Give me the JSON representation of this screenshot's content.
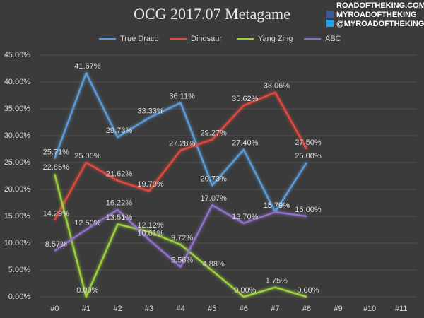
{
  "chart_data": {
    "type": "line",
    "title": "OCG 2017.07 Metagame",
    "annotations": [
      "ROADOFTHEKING.COM",
      "MYROADOFTHEKING",
      "@MYROADOFTHEKING"
    ],
    "categories": [
      "#0",
      "#1",
      "#2",
      "#3",
      "#4",
      "#5",
      "#6",
      "#7",
      "#8",
      "#9",
      "#10",
      "#11"
    ],
    "series": [
      {
        "name": "True Draco",
        "color": "#5b9bd5",
        "values": [
          25.71,
          41.67,
          29.73,
          33.33,
          36.11,
          20.73,
          27.4,
          15.79,
          25.0,
          null,
          null,
          null
        ],
        "value_labels": [
          "25.71%",
          "41.67%",
          "29.73%",
          "33.33%",
          "36.11%",
          "20.73%",
          "27.40%",
          "15.79%",
          "25.00%",
          null,
          null,
          null
        ]
      },
      {
        "name": "Dinosaur",
        "color": "#e04a3c",
        "values": [
          14.29,
          25.0,
          21.62,
          19.7,
          27.28,
          29.27,
          35.62,
          38.06,
          27.5,
          null,
          null,
          null
        ],
        "value_labels": [
          "14.29%",
          "25.00%",
          "21.62%",
          "19.70%",
          "27.28%",
          "29.27%",
          "35.62%",
          "38.06%",
          "27.50%",
          null,
          null,
          null
        ]
      },
      {
        "name": "Yang Zing",
        "color": "#9bd03c",
        "values": [
          22.86,
          0.0,
          13.51,
          12.12,
          9.72,
          4.88,
          0.0,
          1.75,
          0.0,
          null,
          null,
          null
        ],
        "value_labels": [
          "22.86%",
          "0.00%",
          "13.51%",
          "12.12%",
          "9.72%",
          "4.88%",
          "0.00%",
          "1.75%",
          "0.00%",
          null,
          null,
          null
        ]
      },
      {
        "name": "ABC",
        "color": "#9070c8",
        "values": [
          8.57,
          12.5,
          16.22,
          10.61,
          5.56,
          17.07,
          13.7,
          15.79,
          15.0,
          null,
          null,
          null
        ],
        "value_labels": [
          "8.57%",
          "12.50%",
          "16.22%",
          "10.61%",
          "5.56%",
          "17.07%",
          "13.70%",
          "15.79%",
          "15.00%",
          null,
          null,
          null
        ]
      }
    ],
    "ylim": [
      0,
      45
    ],
    "yticks": [
      {
        "value": 0,
        "label": "0.00%"
      },
      {
        "value": 5,
        "label": "5.00%"
      },
      {
        "value": 10,
        "label": "10.00%"
      },
      {
        "value": 15,
        "label": "15.00%"
      },
      {
        "value": 20,
        "label": "20.00%"
      },
      {
        "value": 25,
        "label": "25.00%"
      },
      {
        "value": 30,
        "label": "30.00%"
      },
      {
        "value": 35,
        "label": "35.00%"
      },
      {
        "value": 40,
        "label": "40.00%"
      },
      {
        "value": 45,
        "label": "45.00%"
      }
    ],
    "grid": true,
    "legend": "top"
  }
}
